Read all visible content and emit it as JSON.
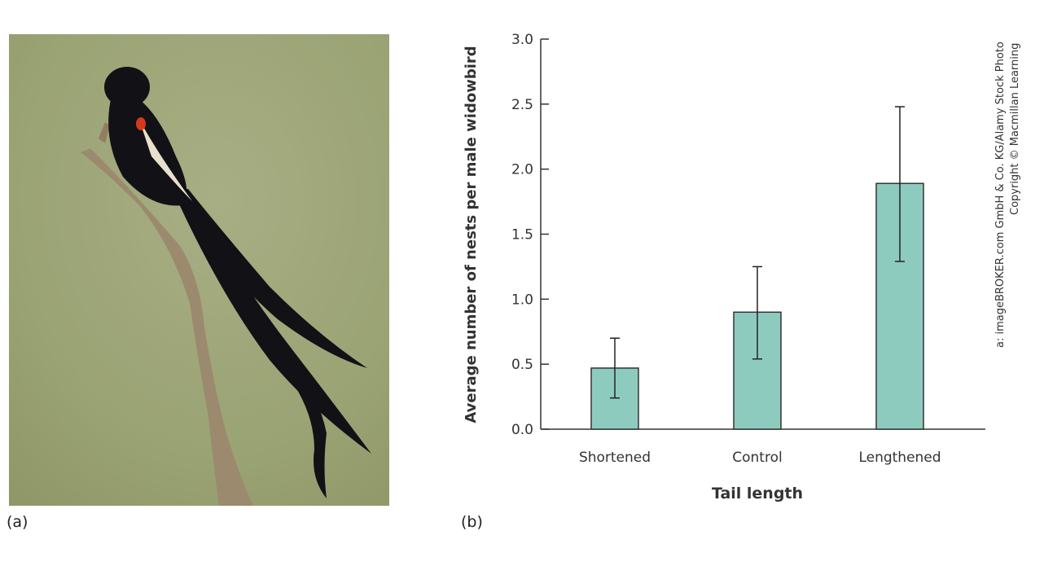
{
  "panels": {
    "a": "(a)",
    "b": "(b)"
  },
  "credit": {
    "line1": "a: imageBROKER.com GmbH & Co. KG/Alamy Stock Photo",
    "line2": "Copyright © Macmillan Learning"
  },
  "colors": {
    "bar": "#8ecbbf",
    "bar_stroke": "#333333",
    "axis": "#333333"
  },
  "chart_data": {
    "type": "bar",
    "title": "",
    "xlabel": "Tail length",
    "ylabel": "Average number of nests per male widowbird",
    "categories": [
      "Shortened",
      "Control",
      "Lengthened"
    ],
    "values": [
      0.47,
      0.9,
      1.89
    ],
    "error_low": [
      0.24,
      0.54,
      1.29
    ],
    "error_high": [
      0.7,
      1.25,
      2.48
    ],
    "ylim": [
      0,
      3.0
    ],
    "yticks": [
      "0.0",
      "0.5",
      "1.0",
      "1.5",
      "2.0",
      "2.5",
      "3.0"
    ],
    "grid": false
  }
}
